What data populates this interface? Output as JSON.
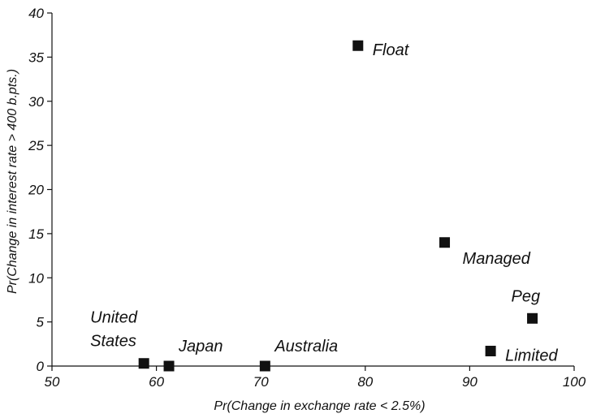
{
  "chart_data": {
    "type": "scatter",
    "title": "",
    "xlabel": "Pr(Change in exchange rate < 2.5%)",
    "ylabel": "Pr(Change in interest rate > 400 b.pts.)",
    "xlim": [
      50,
      100
    ],
    "ylim": [
      0,
      40
    ],
    "xticks": [
      50,
      60,
      70,
      80,
      90,
      100
    ],
    "yticks": [
      0,
      5,
      10,
      15,
      20,
      25,
      30,
      35,
      40
    ],
    "grid": false,
    "legend": "none",
    "points": [
      {
        "label": [
          "Float"
        ],
        "x": 79.3,
        "y": 36.3,
        "label_side": "right"
      },
      {
        "label": [
          "Managed"
        ],
        "x": 87.6,
        "y": 14.0,
        "label_side": "below-right"
      },
      {
        "label": [
          "Peg"
        ],
        "x": 96.0,
        "y": 5.4,
        "label_side": "above"
      },
      {
        "label": [
          "Limited"
        ],
        "x": 92.0,
        "y": 1.7,
        "label_side": "right"
      },
      {
        "label": [
          "United",
          "States"
        ],
        "x": 58.8,
        "y": 0.3,
        "label_side": "above-left"
      },
      {
        "label": [
          "Japan"
        ],
        "x": 61.2,
        "y": 0.0,
        "label_side": "above-right"
      },
      {
        "label": [
          "Australia"
        ],
        "x": 70.4,
        "y": 0.0,
        "label_side": "above-right"
      }
    ]
  }
}
